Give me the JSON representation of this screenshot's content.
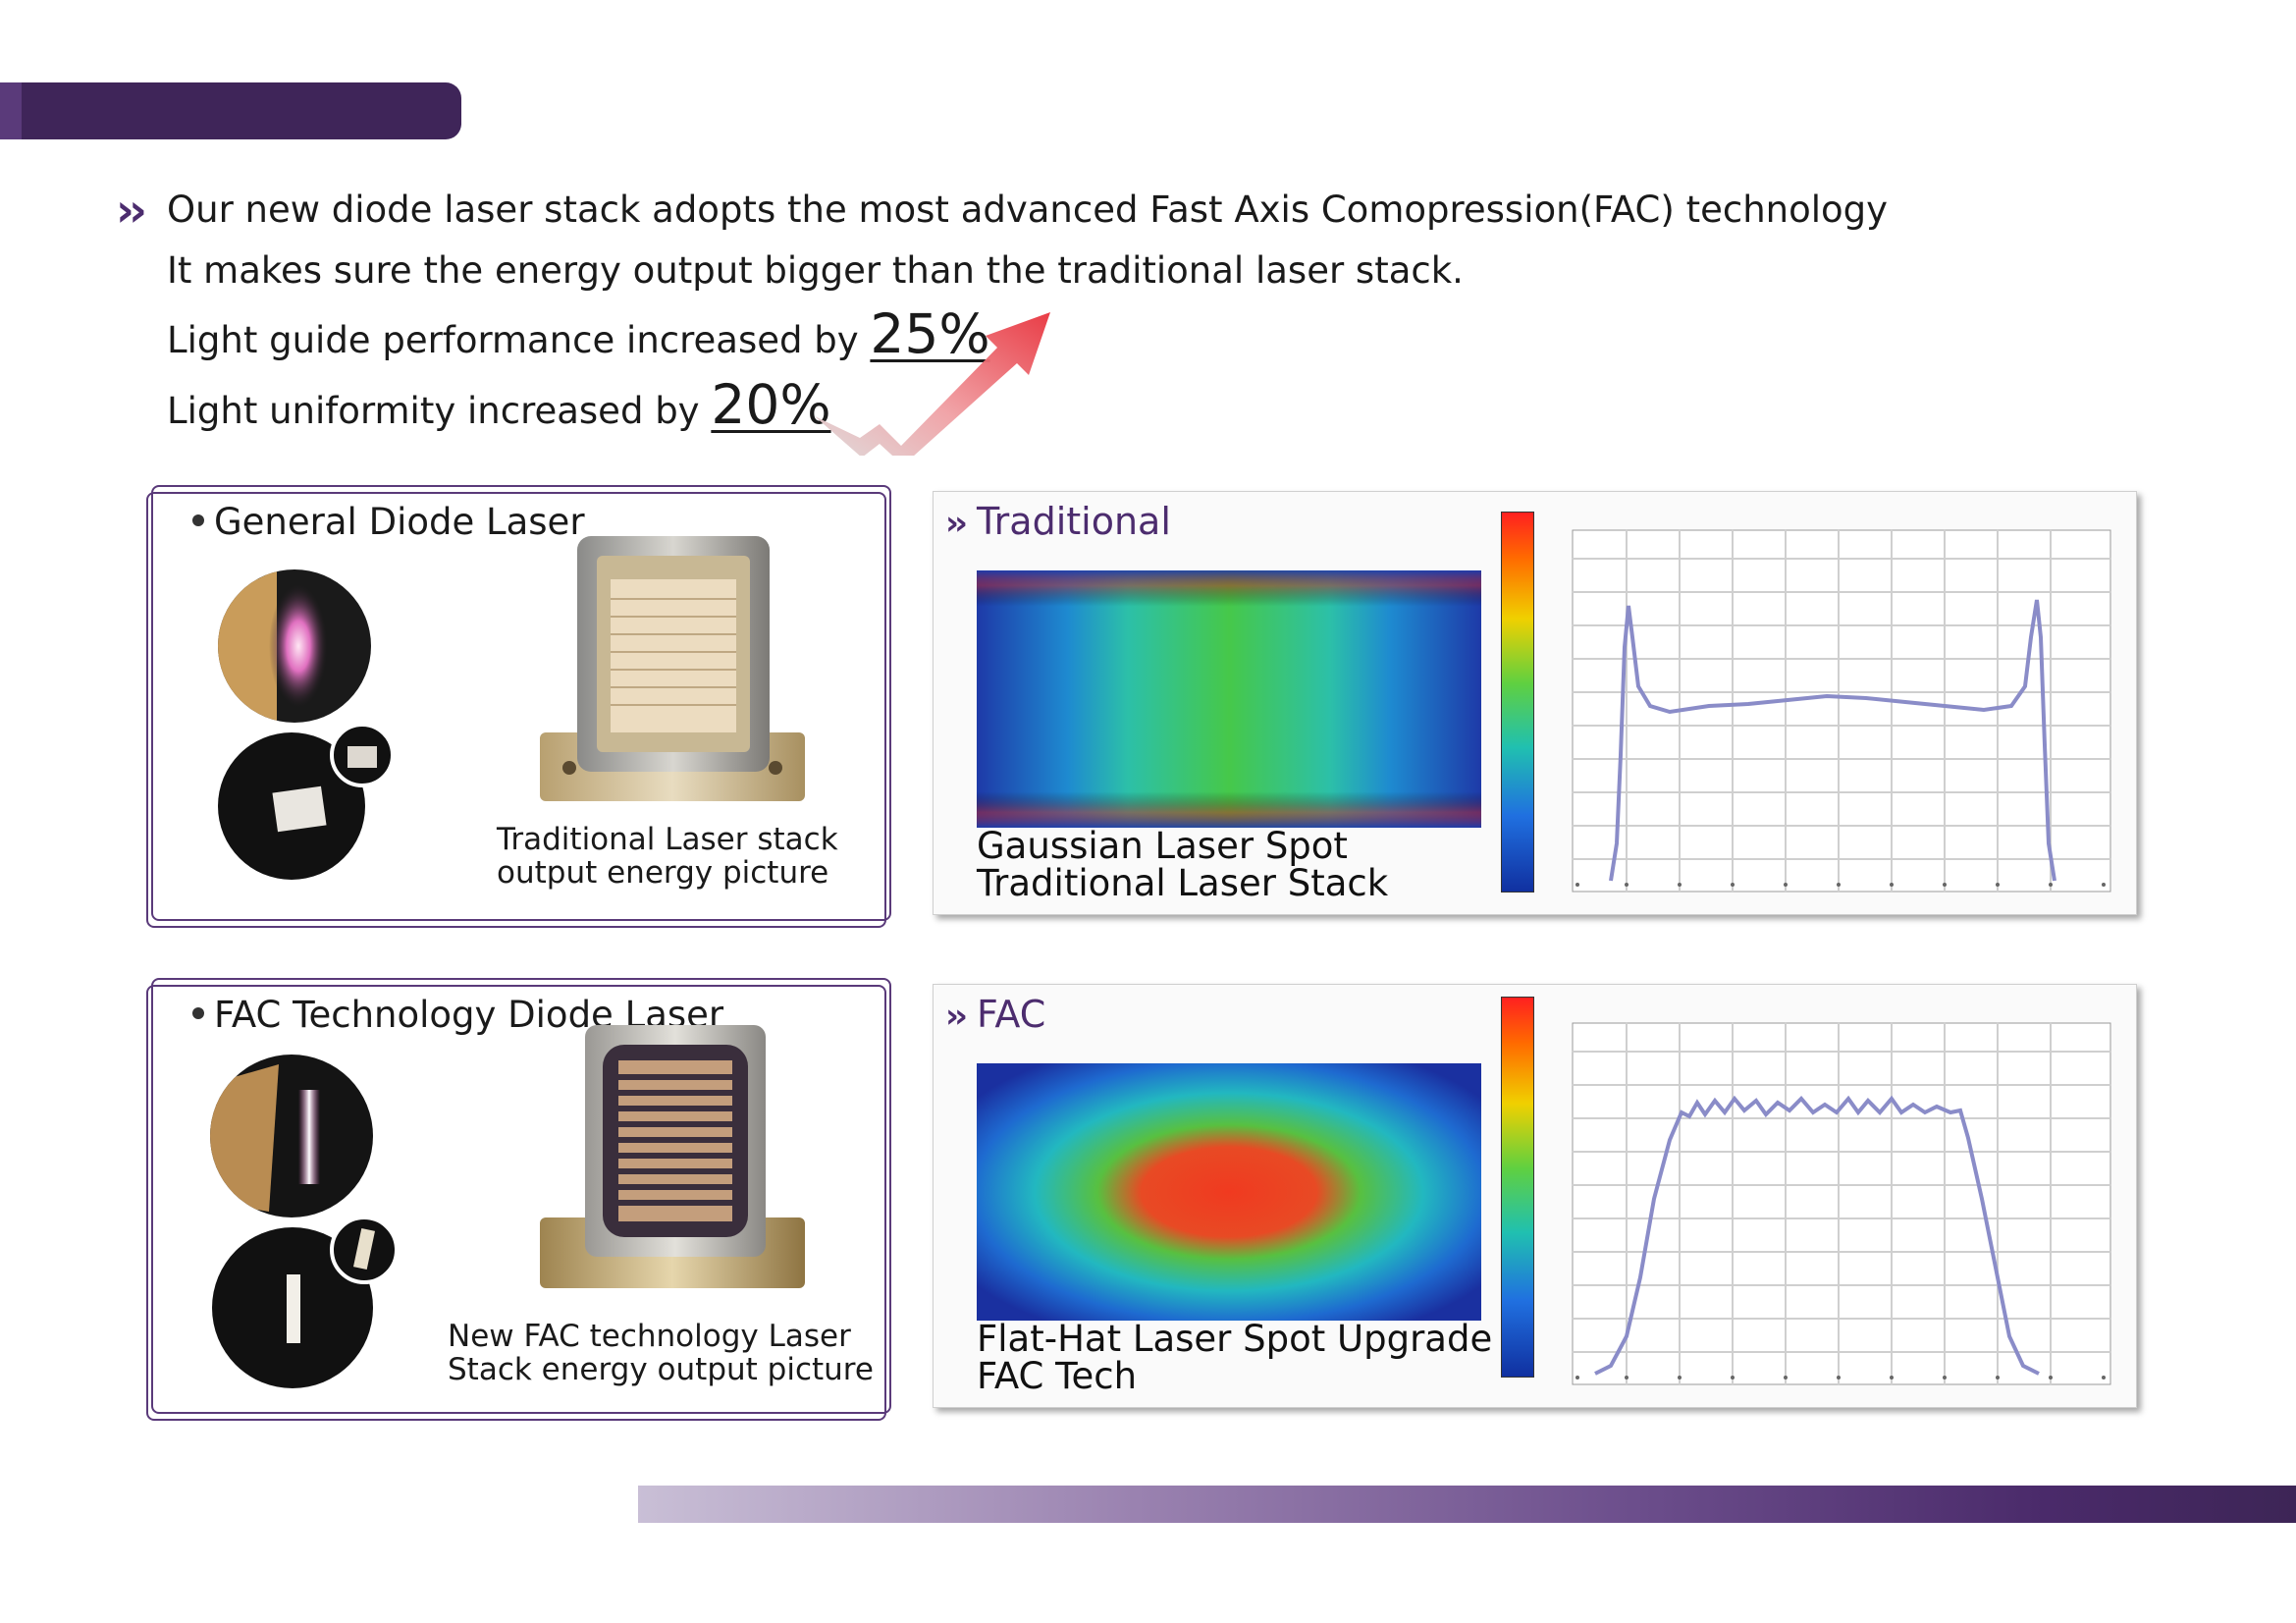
{
  "intro": {
    "line1": "Our new diode laser stack adopts the most advanced Fast Axis Comopression(FAC) technology",
    "line2": "It makes sure the energy output bigger than the traditional laser stack.",
    "line3_prefix": "Light guide performance increased by ",
    "line3_value": "25%",
    "line4_prefix": "Light uniformity increased by ",
    "line4_value": "20%"
  },
  "general": {
    "title": "General Diode Laser",
    "caption_line1": "Traditional Laser stack",
    "caption_line2": "output energy picture"
  },
  "fac": {
    "title": "FAC Technology Diode Laser",
    "caption_line1": "New FAC technology Laser",
    "caption_line2": "Stack energy output picture"
  },
  "traditional_panel": {
    "heading": "Traditional",
    "label_line1": "Gaussian Laser Spot",
    "label_line2": "Traditional Laser Stack"
  },
  "fac_panel": {
    "heading": "FAC",
    "label_line1": "Flat-Hat Laser Spot Upgrade",
    "label_line2": "FAC Tech"
  },
  "colors": {
    "brand_purple": "#4c2c6e",
    "arrow_red": "#e8323c"
  },
  "icons": [
    "double-chevron-icon",
    "bullet-dot-icon",
    "trend-up-arrow-icon"
  ]
}
